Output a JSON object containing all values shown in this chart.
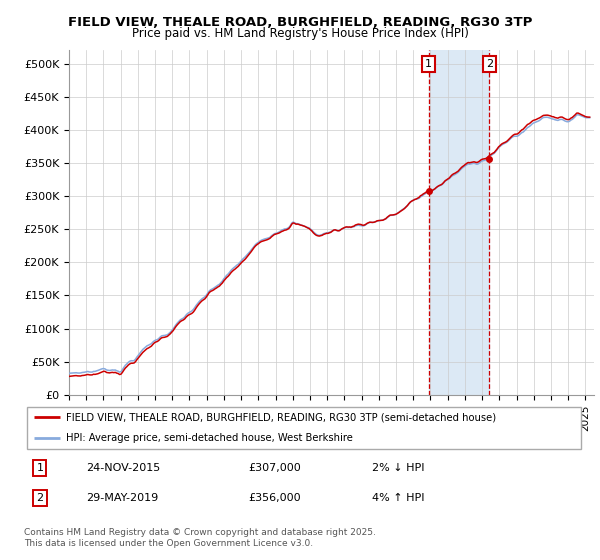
{
  "title1": "FIELD VIEW, THEALE ROAD, BURGHFIELD, READING, RG30 3TP",
  "title2": "Price paid vs. HM Land Registry's House Price Index (HPI)",
  "ylabel_ticks": [
    "£0",
    "£50K",
    "£100K",
    "£150K",
    "£200K",
    "£250K",
    "£300K",
    "£350K",
    "£400K",
    "£450K",
    "£500K"
  ],
  "ytick_values": [
    0,
    50000,
    100000,
    150000,
    200000,
    250000,
    300000,
    350000,
    400000,
    450000,
    500000
  ],
  "ylim": [
    0,
    520000
  ],
  "xlim_start": 1995.0,
  "xlim_end": 2025.5,
  "transaction1_date": 2015.9,
  "transaction1_price": 307000,
  "transaction1_label": "1",
  "transaction2_date": 2019.42,
  "transaction2_price": 356000,
  "transaction2_label": "2",
  "highlight_color": "#dce9f5",
  "dashed_line_color": "#cc0000",
  "property_line_color": "#cc0000",
  "hpi_line_color": "#88aadd",
  "legend_label1": "FIELD VIEW, THEALE ROAD, BURGHFIELD, READING, RG30 3TP (semi-detached house)",
  "legend_label2": "HPI: Average price, semi-detached house, West Berkshire",
  "note1_label": "1",
  "note1_date": "24-NOV-2015",
  "note1_price": "£307,000",
  "note1_change": "2% ↓ HPI",
  "note2_label": "2",
  "note2_date": "29-MAY-2019",
  "note2_price": "£356,000",
  "note2_change": "4% ↑ HPI",
  "footer": "Contains HM Land Registry data © Crown copyright and database right 2025.\nThis data is licensed under the Open Government Licence v3.0.",
  "background_color": "#ffffff",
  "grid_color": "#cccccc"
}
